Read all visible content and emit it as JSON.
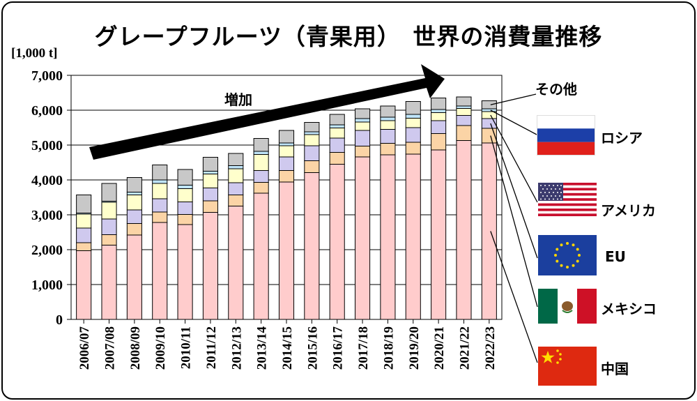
{
  "title": "グレープフルーツ（青果用）　世界の消費量推移",
  "unit_label": "[1,000 t]",
  "annotation": "増加",
  "chart_data": {
    "type": "bar",
    "stacked": true,
    "categories": [
      "2006/07",
      "2007/08",
      "2008/09",
      "2009/10",
      "2010/11",
      "2011/12",
      "2012/13",
      "2013/14",
      "2014/15",
      "2015/16",
      "2016/17",
      "2017/18",
      "2018/19",
      "2019/20",
      "2020/21",
      "2021/22",
      "2022/23"
    ],
    "ylim": [
      0,
      7000
    ],
    "yticks": [
      "0",
      "1,000",
      "2,000",
      "3,000",
      "4,000",
      "5,000",
      "6,000",
      "7,000"
    ],
    "ytick_values": [
      0,
      1000,
      2000,
      3000,
      4000,
      5000,
      6000,
      7000
    ],
    "grid": true,
    "series": [
      {
        "name": "中国",
        "color": "#FFCCCC",
        "values": [
          1970,
          2130,
          2420,
          2780,
          2720,
          3070,
          3250,
          3620,
          3940,
          4210,
          4450,
          4660,
          4720,
          4740,
          4860,
          5130,
          5060
        ]
      },
      {
        "name": "メキシコ",
        "color": "#FBD4A6",
        "values": [
          230,
          300,
          330,
          300,
          290,
          330,
          320,
          310,
          330,
          340,
          340,
          310,
          330,
          340,
          470,
          430,
          420
        ]
      },
      {
        "name": "EU",
        "color": "#CFC9EE",
        "values": [
          420,
          450,
          390,
          380,
          360,
          370,
          350,
          340,
          390,
          430,
          410,
          450,
          400,
          420,
          370,
          290,
          280
        ]
      },
      {
        "name": "アメリカ",
        "color": "#FFFFCC",
        "values": [
          400,
          480,
          430,
          440,
          380,
          400,
          400,
          460,
          320,
          320,
          290,
          240,
          250,
          270,
          230,
          200,
          200
        ]
      },
      {
        "name": "ロシア",
        "color": "#BFE4F8",
        "values": [
          30,
          30,
          80,
          100,
          100,
          80,
          90,
          90,
          80,
          80,
          90,
          100,
          100,
          110,
          90,
          70,
          80
        ]
      },
      {
        "name": "その他",
        "color": "#C8C8C8",
        "values": [
          520,
          510,
          420,
          430,
          450,
          400,
          350,
          370,
          360,
          270,
          300,
          280,
          320,
          370,
          330,
          260,
          230
        ]
      }
    ]
  },
  "legend": [
    {
      "label": "その他",
      "flag": "none"
    },
    {
      "label": "ロシア",
      "flag": "russia-flag-icon"
    },
    {
      "label": "アメリカ",
      "flag": "usa-flag-icon"
    },
    {
      "label": "EU",
      "flag": "eu-flag-icon"
    },
    {
      "label": "メキシコ",
      "flag": "mexico-flag-icon"
    },
    {
      "label": "中国",
      "flag": "china-flag-icon"
    }
  ]
}
